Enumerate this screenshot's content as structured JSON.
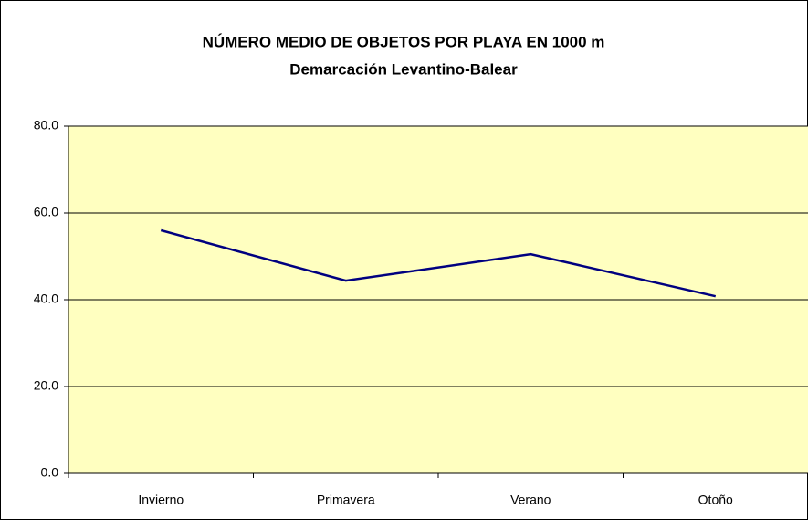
{
  "chart_data": {
    "type": "line",
    "title": "NÚMERO MEDIO DE OBJETOS POR PLAYA EN 1000 m",
    "subtitle": "Demarcación Levantino-Balear",
    "categories": [
      "Invierno",
      "Primavera",
      "Verano",
      "Otoño"
    ],
    "series": [
      {
        "name": null,
        "color": "#000080",
        "values": [
          56.0,
          44.4,
          50.5,
          40.8
        ]
      }
    ],
    "ylim": [
      0,
      80
    ],
    "yticks": [
      {
        "value": 0,
        "label": "0.0"
      },
      {
        "value": 20,
        "label": "20.0"
      },
      {
        "value": 40,
        "label": "40.0"
      },
      {
        "value": 60,
        "label": "60.0"
      },
      {
        "value": 80,
        "label": "80.0"
      }
    ],
    "grid": true,
    "plot_background": "#ffffc0"
  }
}
